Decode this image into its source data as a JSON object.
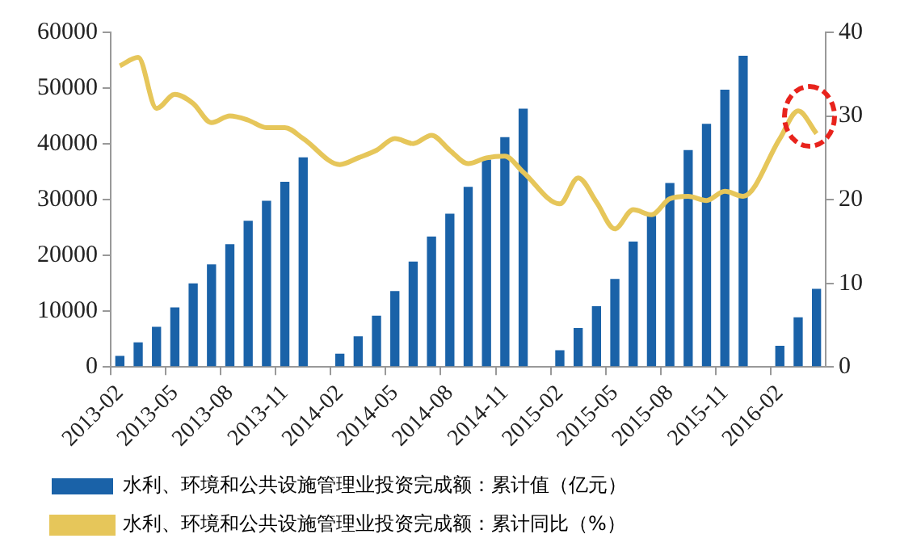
{
  "chart_data": {
    "type": "bar",
    "categories": [
      "2013-02",
      null,
      null,
      "2013-05",
      null,
      null,
      "2013-08",
      null,
      null,
      "2013-11",
      null,
      null,
      "2014-02",
      null,
      null,
      "2014-05",
      null,
      null,
      "2014-08",
      null,
      null,
      "2014-11",
      null,
      null,
      "2015-02",
      null,
      null,
      "2015-05",
      null,
      null,
      "2015-08",
      null,
      null,
      "2015-11",
      null,
      null,
      "2016-02",
      null,
      null
    ],
    "series": [
      {
        "name": "水利、环境和公共设施管理业投资完成额：累计值（亿元）",
        "color": "#1a62a8",
        "values": [
          2000,
          4400,
          7200,
          10700,
          15000,
          18400,
          22000,
          26200,
          29800,
          33200,
          37600,
          null,
          2400,
          5500,
          9200,
          13600,
          18900,
          23400,
          27500,
          32300,
          37200,
          41200,
          46300,
          null,
          3000,
          7000,
          10900,
          15800,
          22500,
          27100,
          33000,
          38900,
          43600,
          49700,
          55800,
          null,
          3800,
          8900,
          14000
        ]
      },
      {
        "name": "水利、环境和公共设施管理业投资完成额：累计同比（%）",
        "type": "line",
        "axis": "y2",
        "color": "#e6c65a",
        "values": [
          36.0,
          37.0,
          30.9,
          32.6,
          31.5,
          29.2,
          30.0,
          29.5,
          28.6,
          28.6,
          27.3,
          null,
          24.2,
          25.0,
          25.9,
          27.3,
          26.7,
          27.7,
          25.9,
          24.3,
          25.0,
          25.2,
          23.3,
          null,
          19.5,
          22.6,
          19.7,
          16.5,
          18.8,
          18.2,
          20.1,
          20.4,
          19.9,
          21.0,
          20.4,
          null,
          27.3,
          30.6,
          27.9
        ]
      }
    ],
    "ylim": [
      0,
      60000
    ],
    "yticks": [
      0,
      10000,
      20000,
      30000,
      40000,
      50000,
      60000
    ],
    "y2lim": [
      0,
      40
    ],
    "y2ticks": [
      0,
      10,
      20,
      30,
      40
    ],
    "grid": false,
    "legend": "bottom",
    "marker": "none"
  }
}
